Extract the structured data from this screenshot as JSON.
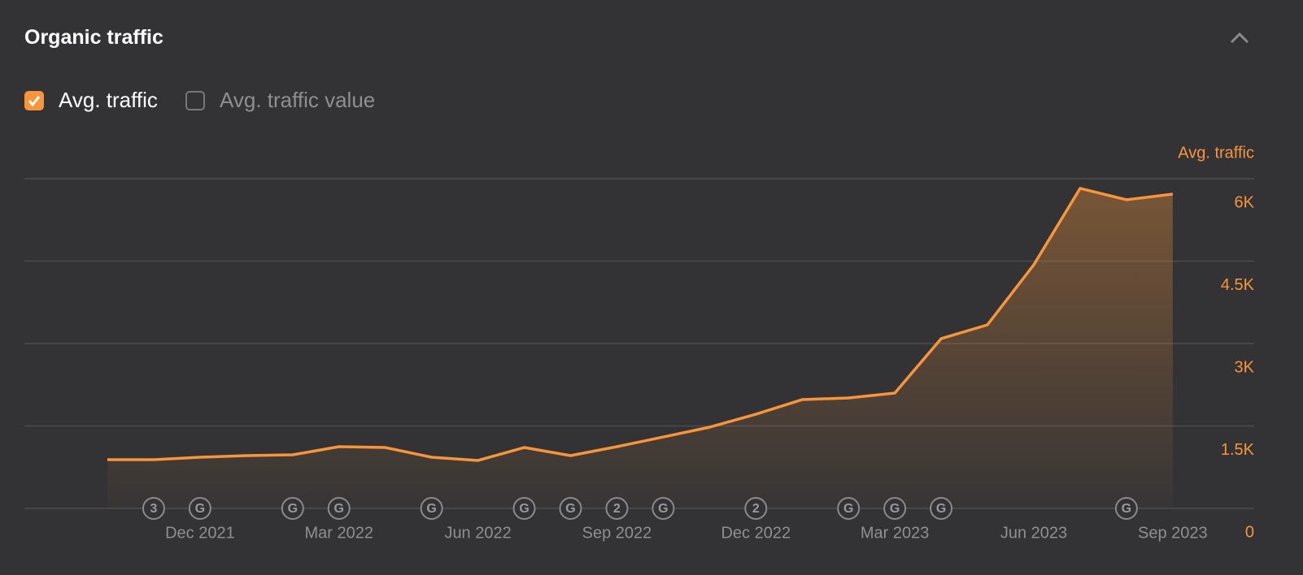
{
  "header": {
    "title": "Organic traffic"
  },
  "checkboxes": [
    {
      "label": "Avg. traffic",
      "checked": true
    },
    {
      "label": "Avg. traffic value",
      "checked": false
    }
  ],
  "chart_data": {
    "type": "line",
    "y_axis_label": "Avg. traffic",
    "categories": [
      null,
      null,
      "Dec 2021",
      null,
      null,
      "Mar 2022",
      null,
      null,
      "Jun 2022",
      null,
      null,
      "Sep 2022",
      null,
      null,
      "Dec 2022",
      null,
      null,
      "Mar 2023",
      null,
      null,
      "Jun 2023",
      null,
      null,
      "Sep 2023"
    ],
    "series": [
      {
        "name": "Avg. traffic",
        "color": "#f7953a",
        "values": [
          887,
          887,
          931,
          961,
          975,
          1123,
          1108,
          931,
          872,
          1108,
          961,
          1123,
          1300,
          1478,
          1714,
          1980,
          2010,
          2099,
          3089,
          3340,
          4433,
          5823,
          5616,
          5719
        ]
      }
    ],
    "ylim": [
      0,
      6000
    ],
    "yticks": [
      0,
      {
        "value": 1500,
        "label": "1.5K"
      },
      {
        "value": 3000,
        "label": "3K"
      },
      {
        "value": 4500,
        "label": "4.5K"
      },
      {
        "value": 6000,
        "label": "6K"
      }
    ],
    "grid": true,
    "annotations": [
      {
        "index": 1,
        "label": "3"
      },
      {
        "index": 2,
        "label": "G"
      },
      {
        "index": 4,
        "label": "G"
      },
      {
        "index": 5,
        "label": "G"
      },
      {
        "index": 7,
        "label": "G"
      },
      {
        "index": 9,
        "label": "G"
      },
      {
        "index": 10,
        "label": "G"
      },
      {
        "index": 11,
        "label": "2"
      },
      {
        "index": 12,
        "label": "G"
      },
      {
        "index": 14,
        "label": "2"
      },
      {
        "index": 16,
        "label": "G"
      },
      {
        "index": 17,
        "label": "G"
      },
      {
        "index": 18,
        "label": "G"
      },
      {
        "index": 22,
        "label": "G"
      }
    ]
  }
}
